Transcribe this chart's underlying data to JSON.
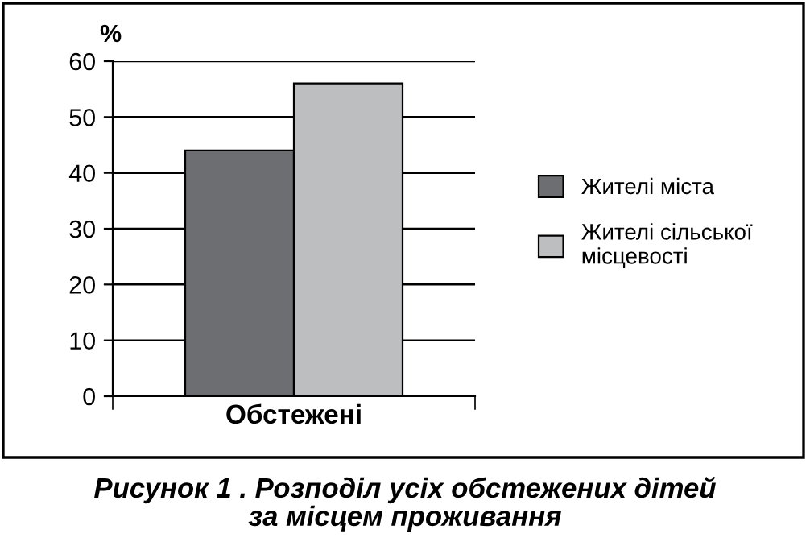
{
  "chart_data": {
    "type": "bar",
    "title": "Рисунок 1 . Розподіл усіх обстежених дітей\nза місцем проживання",
    "ylabel": "%",
    "categories": [
      "Обстежені"
    ],
    "series": [
      {
        "name": "Жителі міста",
        "color": "#6d6e71",
        "values": [
          44
        ]
      },
      {
        "name": "Жителі сільської\nмісцевості",
        "color": "#bcbec0",
        "values": [
          56
        ]
      }
    ],
    "ylim": [
      0,
      60
    ],
    "yticks": [
      0,
      10,
      20,
      30,
      40,
      50,
      60
    ],
    "grid": "y",
    "legend": "right"
  }
}
